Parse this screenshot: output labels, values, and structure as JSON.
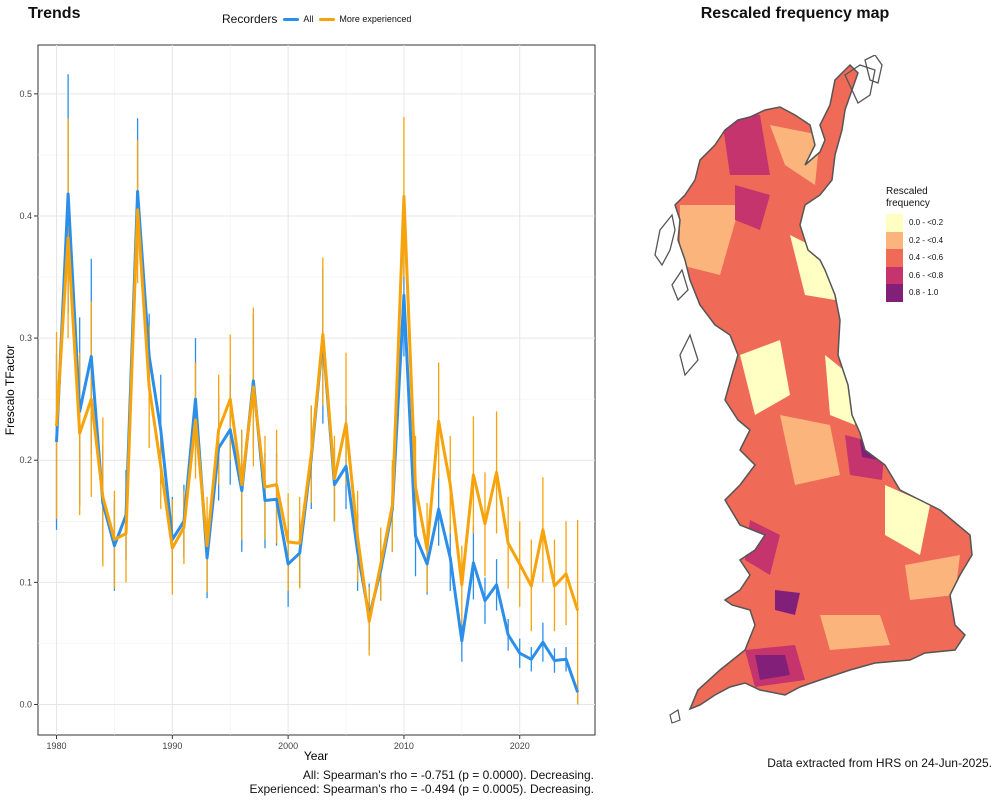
{
  "trends_title": "Trends",
  "map_title": "Rescaled frequency map",
  "legend": {
    "title": "Recorders",
    "items": [
      {
        "label": "All",
        "color": "#2b8fea"
      },
      {
        "label": "More experienced",
        "color": "#f7a30b"
      }
    ]
  },
  "stats": {
    "all": "All: Spearman's rho = -0.751 (p = 0.0000). Decreasing.",
    "experienced": "Experienced: Spearman's rho = -0.494 (p = 0.0005). Decreasing."
  },
  "credit": "Data extracted from HRS on 24-Jun-2025.",
  "map_legend": {
    "title": "Rescaled frequency",
    "bins": [
      {
        "label": "0.0 - <0.2",
        "color": "#ffffc4"
      },
      {
        "label": "0.2 - <0.4",
        "color": "#fbb47c"
      },
      {
        "label": "0.4 - <0.6",
        "color": "#f06a58"
      },
      {
        "label": "0.6 - <0.8",
        "color": "#c5346d"
      },
      {
        "label": "0.8 - 1.0",
        "color": "#822079"
      }
    ]
  },
  "chart_data": {
    "type": "line",
    "xlabel": "Year",
    "ylabel": "Frescalo TFactor",
    "xlim": [
      1978.4,
      2026.5
    ],
    "ylim": [
      -0.025,
      0.54
    ],
    "x_ticks": [
      1980,
      1990,
      2000,
      2010,
      2020
    ],
    "y_ticks": [
      0.0,
      0.1,
      0.2,
      0.3,
      0.4,
      0.5
    ],
    "grid": true,
    "legend_position": "top",
    "x": [
      1980,
      1981,
      1982,
      1983,
      1984,
      1985,
      1986,
      1987,
      1988,
      1989,
      1990,
      1991,
      1992,
      1993,
      1994,
      1995,
      1996,
      1997,
      1998,
      1999,
      2000,
      2001,
      2002,
      2003,
      2004,
      2005,
      2006,
      2007,
      2008,
      2009,
      2010,
      2011,
      2012,
      2013,
      2014,
      2015,
      2016,
      2017,
      2018,
      2019,
      2020,
      2021,
      2022,
      2023,
      2024,
      2025
    ],
    "series": [
      {
        "name": "All",
        "color": "#2b8fea",
        "values": [
          0.215,
          0.418,
          0.24,
          0.285,
          0.165,
          0.13,
          0.155,
          0.42,
          0.285,
          0.225,
          0.135,
          0.15,
          0.25,
          0.12,
          0.21,
          0.225,
          0.175,
          0.265,
          0.167,
          0.168,
          0.115,
          0.124,
          0.202,
          0.3,
          0.18,
          0.195,
          0.125,
          0.072,
          0.11,
          0.16,
          0.335,
          0.138,
          0.115,
          0.16,
          0.12,
          0.052,
          0.116,
          0.085,
          0.098,
          0.057,
          0.042,
          0.037,
          0.051,
          0.036,
          0.037,
          0.01
        ],
        "lower": [
          0.143,
          0.32,
          0.163,
          0.205,
          0.118,
          0.093,
          0.118,
          0.36,
          0.25,
          0.18,
          0.1,
          0.12,
          0.195,
          0.087,
          0.167,
          0.18,
          0.125,
          0.21,
          0.128,
          0.13,
          0.08,
          0.096,
          0.16,
          0.23,
          0.15,
          0.16,
          0.093,
          0.045,
          0.085,
          0.125,
          0.285,
          0.105,
          0.09,
          0.13,
          0.093,
          0.035,
          0.086,
          0.066,
          0.077,
          0.044,
          0.03,
          0.027,
          0.035,
          0.026,
          0.027,
          0.0
        ],
        "upper": [
          0.287,
          0.516,
          0.317,
          0.365,
          0.212,
          0.167,
          0.192,
          0.48,
          0.32,
          0.27,
          0.17,
          0.18,
          0.3,
          0.153,
          0.253,
          0.27,
          0.225,
          0.32,
          0.206,
          0.206,
          0.15,
          0.152,
          0.244,
          0.358,
          0.21,
          0.245,
          0.157,
          0.099,
          0.135,
          0.195,
          0.39,
          0.171,
          0.14,
          0.19,
          0.147,
          0.069,
          0.146,
          0.104,
          0.119,
          0.07,
          0.054,
          0.047,
          0.067,
          0.046,
          0.047,
          0.02
        ]
      },
      {
        "name": "More experienced",
        "color": "#f7a30b",
        "values": [
          0.228,
          0.382,
          0.222,
          0.25,
          0.17,
          0.135,
          0.14,
          0.405,
          0.26,
          0.195,
          0.128,
          0.145,
          0.233,
          0.13,
          0.225,
          0.25,
          0.18,
          0.26,
          0.178,
          0.18,
          0.133,
          0.132,
          0.205,
          0.303,
          0.185,
          0.23,
          0.137,
          0.068,
          0.115,
          0.163,
          0.416,
          0.178,
          0.127,
          0.232,
          0.18,
          0.098,
          0.188,
          0.148,
          0.19,
          0.132,
          0.115,
          0.097,
          0.143,
          0.097,
          0.107,
          0.077
        ],
        "lower": [
          0.152,
          0.3,
          0.155,
          0.17,
          0.113,
          0.095,
          0.1,
          0.345,
          0.21,
          0.16,
          0.09,
          0.115,
          0.185,
          0.092,
          0.18,
          0.2,
          0.135,
          0.195,
          0.135,
          0.132,
          0.093,
          0.095,
          0.165,
          0.245,
          0.15,
          0.18,
          0.1,
          0.04,
          0.085,
          0.125,
          0.35,
          0.135,
          0.092,
          0.185,
          0.14,
          0.065,
          0.14,
          0.105,
          0.14,
          0.095,
          0.08,
          0.06,
          0.1,
          0.06,
          0.065,
          0.0
        ],
        "upper": [
          0.305,
          0.48,
          0.288,
          0.33,
          0.235,
          0.175,
          0.18,
          0.462,
          0.31,
          0.23,
          0.168,
          0.175,
          0.28,
          0.17,
          0.27,
          0.303,
          0.225,
          0.325,
          0.22,
          0.225,
          0.173,
          0.17,
          0.245,
          0.366,
          0.22,
          0.288,
          0.175,
          0.096,
          0.145,
          0.2,
          0.481,
          0.22,
          0.165,
          0.28,
          0.22,
          0.13,
          0.236,
          0.19,
          0.24,
          0.17,
          0.15,
          0.135,
          0.186,
          0.135,
          0.15,
          0.151
        ]
      }
    ]
  }
}
